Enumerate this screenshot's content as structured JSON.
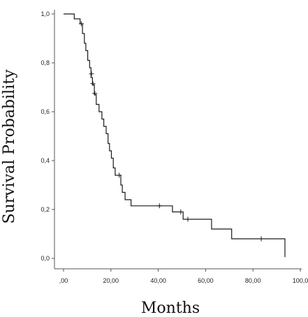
{
  "chart_data": {
    "type": "line",
    "subtype": "kaplan-meier step",
    "xlabel": "Months",
    "ylabel": "Survival Probability",
    "xlim": [
      0,
      100
    ],
    "ylim": [
      0,
      1
    ],
    "x_ticks": [
      0,
      20,
      40,
      60,
      80,
      100
    ],
    "x_tick_labels": [
      ",00",
      "20,00",
      "40,00",
      "60,00",
      "80,00",
      "100,0"
    ],
    "y_ticks": [
      0,
      0.2,
      0.4,
      0.6,
      0.8,
      1.0
    ],
    "y_tick_labels": [
      "0,0",
      "0,2",
      "0,4",
      "0,6",
      "0,8",
      "1,0"
    ],
    "grid": false,
    "legend": "none",
    "series": [
      {
        "line_color": "#1a1a1a",
        "steps": [
          [
            0,
            1.0
          ],
          [
            4.5,
            1.0
          ],
          [
            4.5,
            0.98
          ],
          [
            7,
            0.98
          ],
          [
            7,
            0.96
          ],
          [
            8,
            0.96
          ],
          [
            8,
            0.92
          ],
          [
            8.8,
            0.92
          ],
          [
            8.8,
            0.88
          ],
          [
            9.4,
            0.88
          ],
          [
            9.4,
            0.85
          ],
          [
            10.2,
            0.85
          ],
          [
            10.2,
            0.81
          ],
          [
            11,
            0.81
          ],
          [
            11,
            0.78
          ],
          [
            11.6,
            0.78
          ],
          [
            11.6,
            0.74
          ],
          [
            12.2,
            0.74
          ],
          [
            12.2,
            0.71
          ],
          [
            13,
            0.71
          ],
          [
            13,
            0.67
          ],
          [
            13.8,
            0.67
          ],
          [
            13.8,
            0.63
          ],
          [
            15,
            0.63
          ],
          [
            15,
            0.6
          ],
          [
            16.2,
            0.6
          ],
          [
            16.2,
            0.57
          ],
          [
            17,
            0.57
          ],
          [
            17,
            0.54
          ],
          [
            18,
            0.54
          ],
          [
            18,
            0.51
          ],
          [
            18.8,
            0.51
          ],
          [
            18.8,
            0.47
          ],
          [
            19.4,
            0.47
          ],
          [
            19.4,
            0.44
          ],
          [
            20.2,
            0.44
          ],
          [
            20.2,
            0.41
          ],
          [
            21,
            0.41
          ],
          [
            21,
            0.37
          ],
          [
            21.8,
            0.37
          ],
          [
            21.8,
            0.34
          ],
          [
            24.2,
            0.34
          ],
          [
            24.2,
            0.3
          ],
          [
            24.8,
            0.3
          ],
          [
            24.8,
            0.27
          ],
          [
            26,
            0.27
          ],
          [
            26,
            0.24
          ],
          [
            28.5,
            0.24
          ],
          [
            28.5,
            0.215
          ],
          [
            46,
            0.215
          ],
          [
            46,
            0.19
          ],
          [
            50.5,
            0.19
          ],
          [
            50.5,
            0.16
          ],
          [
            62.5,
            0.16
          ],
          [
            62.5,
            0.12
          ],
          [
            71,
            0.12
          ],
          [
            71,
            0.08
          ],
          [
            93.5,
            0.08
          ],
          [
            93.5,
            0.005
          ]
        ],
        "censored": [
          [
            7.5,
            0.96
          ],
          [
            11.8,
            0.755
          ],
          [
            12.4,
            0.715
          ],
          [
            13.2,
            0.675
          ],
          [
            23.5,
            0.34
          ],
          [
            40.5,
            0.215
          ],
          [
            49.5,
            0.19
          ],
          [
            52.5,
            0.16
          ],
          [
            83.5,
            0.08
          ]
        ]
      }
    ]
  }
}
